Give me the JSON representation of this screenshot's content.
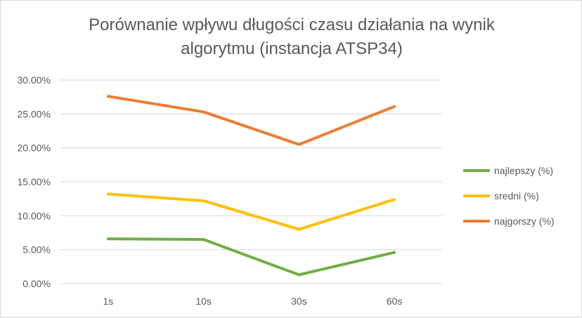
{
  "chart_data": {
    "type": "line",
    "title_line1": "Porównanie wpływu długości czasu działania na wynik",
    "title_line2": "algorytmu (instancja ATSP34)",
    "categories": [
      "1s",
      "10s",
      "30s",
      "60s"
    ],
    "y_ticks": [
      "0.00%",
      "5.00%",
      "10.00%",
      "15.00%",
      "20.00%",
      "25.00%",
      "30.00%"
    ],
    "ylim": [
      0,
      30
    ],
    "grid": true,
    "legend_position": "right",
    "series": [
      {
        "name": "najlepszy (%)",
        "color": "#70ad47",
        "values": [
          6.6,
          6.5,
          1.3,
          4.6
        ]
      },
      {
        "name": "sredni (%)",
        "color": "#ffc000",
        "values": [
          13.2,
          12.2,
          8.0,
          12.4
        ]
      },
      {
        "name": "najgorszy (%)",
        "color": "#ed7d31",
        "values": [
          27.6,
          25.3,
          20.5,
          26.1
        ]
      }
    ]
  }
}
